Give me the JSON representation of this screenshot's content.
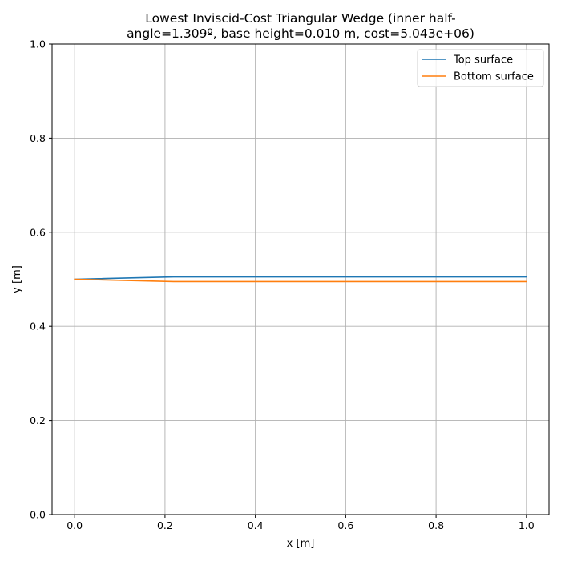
{
  "chart_data": {
    "type": "line",
    "title_lines": [
      "Lowest Inviscid-Cost Triangular Wedge (inner half-",
      "angle=1.309º, base height=0.010 m, cost=5.043e+06)"
    ],
    "xlabel": "x [m]",
    "ylabel": "y [m]",
    "xlim": [
      -0.05,
      1.05
    ],
    "ylim": [
      0.0,
      1.0
    ],
    "xticks": [
      0.0,
      0.2,
      0.4,
      0.6,
      0.8,
      1.0
    ],
    "xtick_labels": [
      "0.0",
      "0.2",
      "0.4",
      "0.6",
      "0.8",
      "1.0"
    ],
    "yticks": [
      0.0,
      0.2,
      0.4,
      0.6,
      0.8,
      1.0
    ],
    "ytick_labels": [
      "0.0",
      "0.2",
      "0.4",
      "0.6",
      "0.8",
      "1.0"
    ],
    "grid": true,
    "legend_position": "upper right",
    "series": [
      {
        "name": "Top surface",
        "color": "#1f77b4",
        "x": [
          0.0,
          0.219,
          1.0
        ],
        "y": [
          0.5,
          0.505,
          0.505
        ]
      },
      {
        "name": "Bottom surface",
        "color": "#ff7f0e",
        "x": [
          0.0,
          0.219,
          1.0
        ],
        "y": [
          0.5,
          0.495,
          0.495
        ]
      }
    ]
  }
}
